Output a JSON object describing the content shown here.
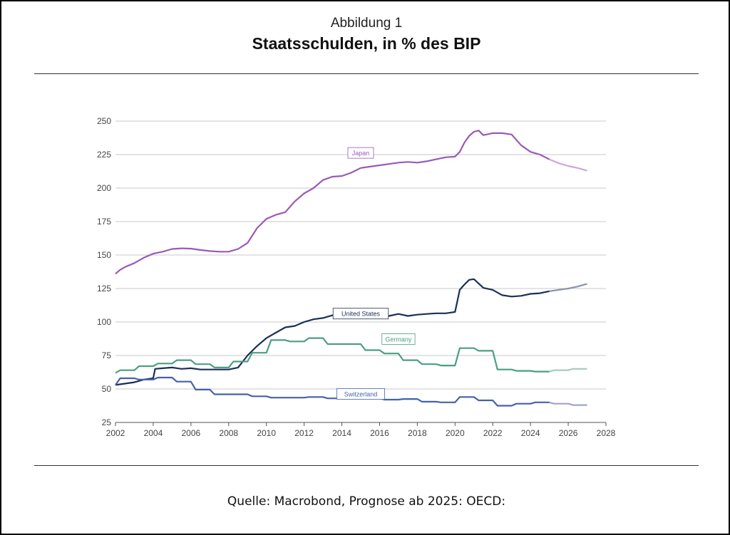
{
  "header": {
    "supertitle": "Abbildung 1",
    "title": "Staatsschulden, in % des BIP"
  },
  "source": "Quelle: Macrobond, Prognose ab 2025: OECD:",
  "chart_data": {
    "type": "line",
    "xlim": [
      2002,
      2028
    ],
    "ylim": [
      25,
      250
    ],
    "x_ticks": [
      2002,
      2004,
      2006,
      2008,
      2010,
      2012,
      2014,
      2016,
      2018,
      2020,
      2022,
      2024,
      2026,
      2028
    ],
    "y_ticks": [
      25,
      50,
      75,
      100,
      125,
      150,
      175,
      200,
      225,
      250
    ],
    "grid": "horizontal",
    "forecast_from": 2025,
    "series": [
      {
        "name": "Japan",
        "color": "#9b59b6",
        "forecast_color": "#c9a8d9",
        "label_at": [
          2015.0,
          226
        ],
        "points": [
          [
            2002.0,
            136
          ],
          [
            2002.25,
            139
          ],
          [
            2002.5,
            141
          ],
          [
            2003.0,
            144
          ],
          [
            2003.5,
            148
          ],
          [
            2004.0,
            151
          ],
          [
            2004.5,
            152.5
          ],
          [
            2005.0,
            154.5
          ],
          [
            2005.5,
            155
          ],
          [
            2006.0,
            154.8
          ],
          [
            2006.5,
            153.8
          ],
          [
            2007.0,
            153
          ],
          [
            2007.5,
            152.5
          ],
          [
            2008.0,
            152.5
          ],
          [
            2008.5,
            154.5
          ],
          [
            2009.0,
            159
          ],
          [
            2009.5,
            170
          ],
          [
            2010.0,
            177
          ],
          [
            2010.5,
            180
          ],
          [
            2011.0,
            182
          ],
          [
            2011.5,
            190
          ],
          [
            2012.0,
            196
          ],
          [
            2012.5,
            200
          ],
          [
            2013.0,
            206
          ],
          [
            2013.5,
            208.5
          ],
          [
            2014.0,
            209
          ],
          [
            2014.5,
            211.5
          ],
          [
            2015.0,
            215
          ],
          [
            2015.5,
            216
          ],
          [
            2016.0,
            217
          ],
          [
            2016.5,
            218
          ],
          [
            2017.0,
            219
          ],
          [
            2017.5,
            219.5
          ],
          [
            2018.0,
            219
          ],
          [
            2018.5,
            220
          ],
          [
            2019.0,
            221.5
          ],
          [
            2019.5,
            223
          ],
          [
            2020.0,
            223.5
          ],
          [
            2020.25,
            227
          ],
          [
            2020.5,
            234
          ],
          [
            2020.75,
            239
          ],
          [
            2021.0,
            242
          ],
          [
            2021.25,
            243
          ],
          [
            2021.5,
            239.5
          ],
          [
            2022.0,
            241
          ],
          [
            2022.5,
            241
          ],
          [
            2023.0,
            240
          ],
          [
            2023.5,
            232
          ],
          [
            2024.0,
            227
          ],
          [
            2024.5,
            225
          ],
          [
            2025.0,
            221.5
          ],
          [
            2025.5,
            218.5
          ],
          [
            2026.0,
            216.5
          ],
          [
            2026.5,
            215
          ],
          [
            2027.0,
            213
          ]
        ]
      },
      {
        "name": "United States",
        "color": "#1c2f55",
        "forecast_color": "#8a94ac",
        "label_at": [
          2015.0,
          106
        ],
        "points": [
          [
            2002.0,
            53
          ],
          [
            2002.5,
            54
          ],
          [
            2003.0,
            55
          ],
          [
            2003.5,
            57
          ],
          [
            2004.0,
            58
          ],
          [
            2004.1,
            65
          ],
          [
            2004.5,
            65.5
          ],
          [
            2005.0,
            66
          ],
          [
            2005.5,
            65
          ],
          [
            2006.0,
            65.5
          ],
          [
            2006.5,
            64.5
          ],
          [
            2007.0,
            64.5
          ],
          [
            2007.5,
            64.5
          ],
          [
            2008.0,
            64.5
          ],
          [
            2008.5,
            66
          ],
          [
            2009.0,
            75
          ],
          [
            2009.5,
            82
          ],
          [
            2010.0,
            88
          ],
          [
            2010.5,
            92
          ],
          [
            2011.0,
            96
          ],
          [
            2011.5,
            97
          ],
          [
            2012.0,
            100
          ],
          [
            2012.5,
            102
          ],
          [
            2013.0,
            103
          ],
          [
            2013.5,
            105
          ],
          [
            2014.0,
            103.5
          ],
          [
            2014.5,
            104.5
          ],
          [
            2015.0,
            104
          ],
          [
            2015.5,
            103
          ],
          [
            2016.0,
            104.5
          ],
          [
            2016.5,
            104.5
          ],
          [
            2017.0,
            106
          ],
          [
            2017.5,
            104.5
          ],
          [
            2018.0,
            105.5
          ],
          [
            2018.5,
            106
          ],
          [
            2019.0,
            106.5
          ],
          [
            2019.5,
            106.5
          ],
          [
            2020.0,
            107.5
          ],
          [
            2020.25,
            124
          ],
          [
            2020.5,
            128
          ],
          [
            2020.75,
            131.5
          ],
          [
            2021.0,
            132
          ],
          [
            2021.5,
            125.5
          ],
          [
            2022.0,
            124
          ],
          [
            2022.5,
            120
          ],
          [
            2023.0,
            119
          ],
          [
            2023.5,
            119.5
          ],
          [
            2024.0,
            121
          ],
          [
            2024.5,
            121.5
          ],
          [
            2025.0,
            123
          ],
          [
            2025.5,
            124
          ],
          [
            2026.0,
            125
          ],
          [
            2026.5,
            126.5
          ],
          [
            2027.0,
            128.5
          ]
        ]
      },
      {
        "name": "Germany",
        "color": "#4a9e83",
        "forecast_color": "#9fcdb9",
        "label_at": [
          2017.0,
          87
        ],
        "points": [
          [
            2002.0,
            62
          ],
          [
            2002.25,
            64
          ],
          [
            2002.5,
            64
          ],
          [
            2003.0,
            64
          ],
          [
            2003.25,
            67
          ],
          [
            2004.0,
            67
          ],
          [
            2004.25,
            69
          ],
          [
            2005.0,
            69
          ],
          [
            2005.25,
            71.5
          ],
          [
            2006.0,
            71.5
          ],
          [
            2006.25,
            68.5
          ],
          [
            2007.0,
            68.5
          ],
          [
            2007.25,
            66
          ],
          [
            2008.0,
            66
          ],
          [
            2008.25,
            70.5
          ],
          [
            2009.0,
            70.5
          ],
          [
            2009.25,
            77
          ],
          [
            2010.0,
            77
          ],
          [
            2010.25,
            86.5
          ],
          [
            2011.0,
            86.5
          ],
          [
            2011.25,
            85.5
          ],
          [
            2012.0,
            85.5
          ],
          [
            2012.25,
            88
          ],
          [
            2013.0,
            88
          ],
          [
            2013.25,
            83.5
          ],
          [
            2015.0,
            83.5
          ],
          [
            2015.25,
            79
          ],
          [
            2016.0,
            79
          ],
          [
            2016.25,
            76.5
          ],
          [
            2017.0,
            76.5
          ],
          [
            2017.25,
            71.5
          ],
          [
            2018.0,
            71.5
          ],
          [
            2018.25,
            68.5
          ],
          [
            2019.0,
            68.5
          ],
          [
            2019.25,
            67.5
          ],
          [
            2020.0,
            67.5
          ],
          [
            2020.25,
            80.5
          ],
          [
            2021.0,
            80.5
          ],
          [
            2021.25,
            78.5
          ],
          [
            2022.0,
            78.5
          ],
          [
            2022.25,
            64.5
          ],
          [
            2023.0,
            64.5
          ],
          [
            2023.25,
            63.5
          ],
          [
            2024.0,
            63.5
          ],
          [
            2024.25,
            63
          ],
          [
            2025.0,
            63
          ],
          [
            2025.25,
            64
          ],
          [
            2026.0,
            64
          ],
          [
            2026.25,
            65
          ],
          [
            2027.0,
            65
          ]
        ]
      },
      {
        "name": "Switzerland",
        "color": "#4661a9",
        "forecast_color": "#9aa6cc",
        "label_at": [
          2015.0,
          46
        ],
        "points": [
          [
            2002.0,
            53
          ],
          [
            2002.25,
            58
          ],
          [
            2003.0,
            58
          ],
          [
            2003.25,
            57
          ],
          [
            2004.0,
            57
          ],
          [
            2004.25,
            58.5
          ],
          [
            2005.0,
            58.5
          ],
          [
            2005.25,
            55.5
          ],
          [
            2006.0,
            55.5
          ],
          [
            2006.25,
            49.5
          ],
          [
            2007.0,
            49.5
          ],
          [
            2007.25,
            46
          ],
          [
            2009.0,
            46
          ],
          [
            2009.25,
            44.5
          ],
          [
            2010.0,
            44.5
          ],
          [
            2010.25,
            43.5
          ],
          [
            2012.0,
            43.5
          ],
          [
            2012.25,
            44
          ],
          [
            2013.0,
            44
          ],
          [
            2013.25,
            43
          ],
          [
            2015.0,
            43
          ],
          [
            2015.25,
            43
          ],
          [
            2016.0,
            43
          ],
          [
            2016.25,
            42
          ],
          [
            2017.0,
            42
          ],
          [
            2017.25,
            42.5
          ],
          [
            2018.0,
            42.5
          ],
          [
            2018.25,
            40.5
          ],
          [
            2019.0,
            40.5
          ],
          [
            2019.25,
            40
          ],
          [
            2020.0,
            40
          ],
          [
            2020.25,
            44
          ],
          [
            2021.0,
            44
          ],
          [
            2021.25,
            41.5
          ],
          [
            2022.0,
            41.5
          ],
          [
            2022.25,
            37.5
          ],
          [
            2023.0,
            37.5
          ],
          [
            2023.25,
            39
          ],
          [
            2024.0,
            39
          ],
          [
            2024.25,
            40
          ],
          [
            2025.0,
            40
          ],
          [
            2025.25,
            39
          ],
          [
            2026.0,
            39
          ],
          [
            2026.25,
            38
          ],
          [
            2027.0,
            38
          ]
        ]
      }
    ]
  }
}
